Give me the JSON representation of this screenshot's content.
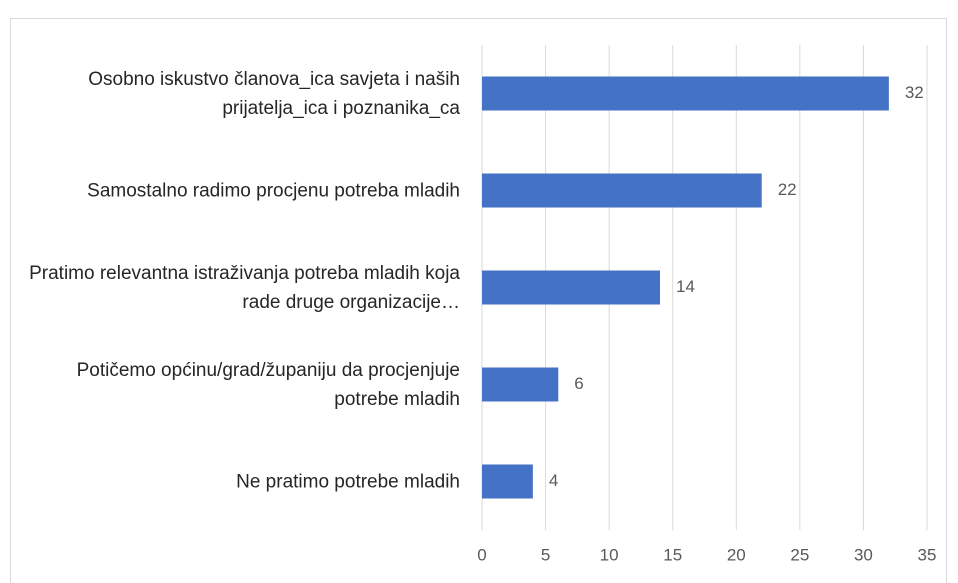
{
  "chart_data": {
    "type": "bar",
    "orientation": "horizontal",
    "categories": [
      "Osobno iskustvo članova_ica savjeta i naših prijatelja_ica i poznanika_ca",
      "Samostalno radimo procjenu potreba mladih",
      "Pratimo relevantna istraživanja potreba mladih koja rade druge organizacije…",
      "Potičemo općinu/grad/županiju da procjenjuje potrebe mladih",
      "Ne pratimo potrebe mladih"
    ],
    "values": [
      32,
      22,
      14,
      6,
      4
    ],
    "color": "#4472c4",
    "xlim": [
      0,
      35
    ],
    "xticks": [
      0,
      5,
      10,
      15,
      20,
      25,
      30,
      35
    ],
    "grid": true
  }
}
